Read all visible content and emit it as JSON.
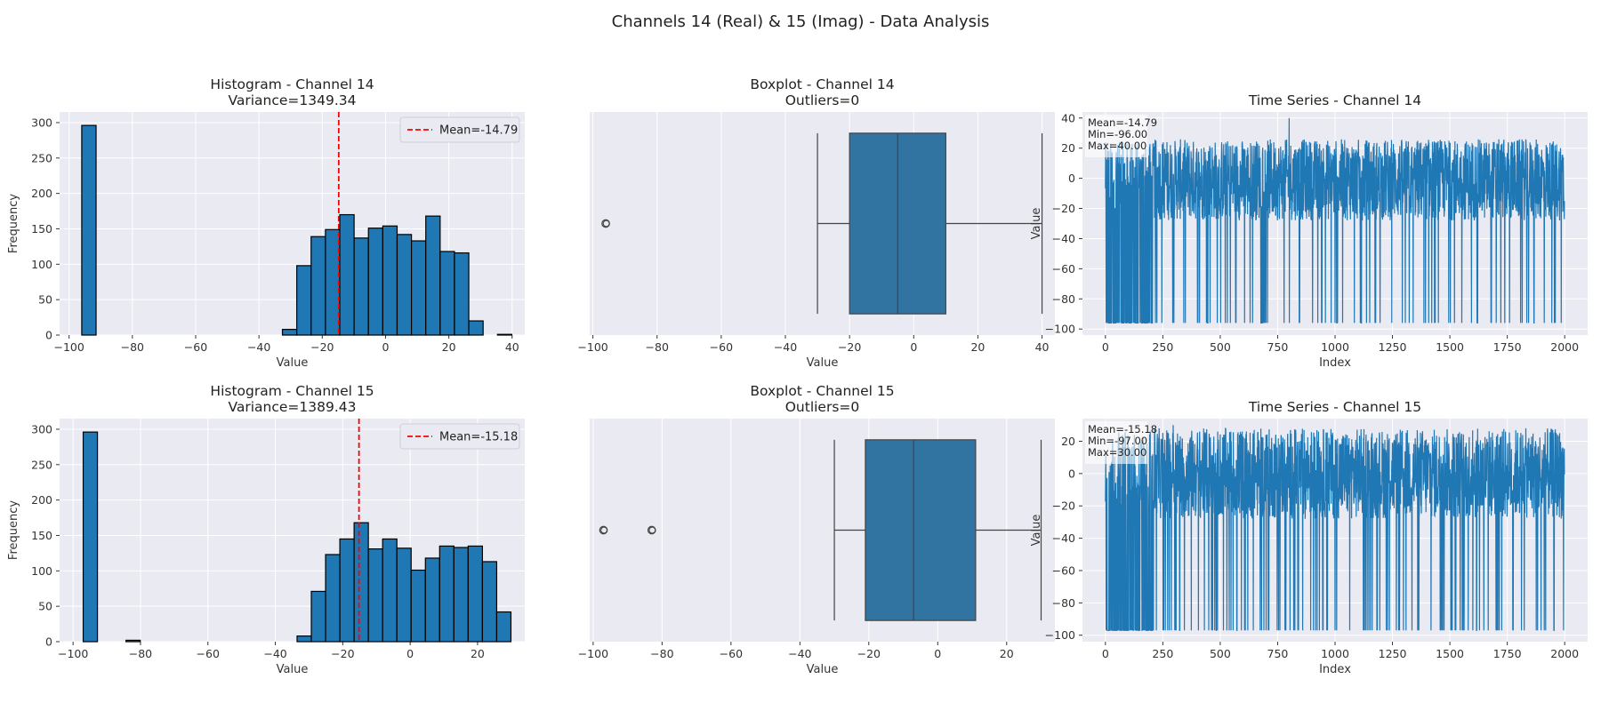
{
  "figure": {
    "suptitle": "Channels 14 (Real) & 15 (Imag) - Data Analysis"
  },
  "colors": {
    "bar": "#1f77b4",
    "box": "#3274a1",
    "bg": "#eaeaf2",
    "mean_line": "#ff0000"
  },
  "chart_data": [
    {
      "type": "bar",
      "title": "Histogram - Channel 14",
      "subtitle": "Variance=1349.34",
      "xlabel": "Value",
      "ylabel": "Frequency",
      "xlim": [
        -103,
        44
      ],
      "ylim": [
        0,
        315
      ],
      "xticks": [
        -100,
        -80,
        -60,
        -40,
        -20,
        0,
        20,
        40
      ],
      "yticks": [
        0,
        50,
        100,
        150,
        200,
        250,
        300
      ],
      "bins_start": -96,
      "bin_width": 4.53,
      "values": [
        296,
        0,
        0,
        0,
        0,
        0,
        0,
        0,
        0,
        0,
        0,
        0,
        0,
        0,
        8,
        98,
        139,
        149,
        170,
        137,
        151,
        154,
        142,
        133,
        168,
        118,
        116,
        20,
        0,
        1
      ],
      "mean": -14.79,
      "legend": "Mean=-14.79",
      "legend_position": "top-right",
      "grid": true
    },
    {
      "type": "boxplot",
      "title": "Boxplot - Channel 14",
      "subtitle": "Outliers=0",
      "xlabel": "Value",
      "xlim": [
        -101,
        44
      ],
      "xticks": [
        -100,
        -80,
        -60,
        -40,
        -20,
        0,
        20,
        40
      ],
      "whisker_low": -30,
      "q1": -20,
      "median": -5,
      "q3": 10,
      "whisker_high": 40,
      "fliers": [
        -96
      ],
      "grid": true
    },
    {
      "type": "line",
      "title": "Time Series - Channel 14",
      "xlabel": "Index",
      "ylabel": "Value",
      "xlim": [
        -100,
        2100
      ],
      "ylim": [
        -104,
        44
      ],
      "xticks": [
        0,
        250,
        500,
        750,
        1000,
        1250,
        1500,
        1750,
        2000
      ],
      "yticks": [
        -100,
        -80,
        -60,
        -40,
        -20,
        0,
        20,
        40
      ],
      "n_points": 2000,
      "mean": -14.79,
      "min": -96,
      "max": 40,
      "stats_text": [
        "Mean=-14.79",
        "Min=-96.00",
        "Max=40.00"
      ],
      "grid": true
    },
    {
      "type": "bar",
      "title": "Histogram - Channel 15",
      "subtitle": "Variance=1389.43",
      "xlabel": "Value",
      "ylabel": "Frequency",
      "xlim": [
        -104,
        34
      ],
      "ylim": [
        0,
        315
      ],
      "xticks": [
        -100,
        -80,
        -60,
        -40,
        -20,
        0,
        20
      ],
      "yticks": [
        0,
        50,
        100,
        150,
        200,
        250,
        300
      ],
      "bins_start": -97,
      "bin_width": 4.23,
      "values": [
        296,
        0,
        0,
        2,
        0,
        0,
        0,
        0,
        0,
        0,
        0,
        0,
        0,
        0,
        0,
        8,
        71,
        123,
        145,
        168,
        131,
        145,
        132,
        101,
        118,
        135,
        133,
        135,
        113,
        42
      ],
      "mean": -15.18,
      "legend": "Mean=-15.18",
      "legend_position": "top-right",
      "grid": true
    },
    {
      "type": "boxplot",
      "title": "Boxplot - Channel 15",
      "subtitle": "Outliers=0",
      "xlabel": "Value",
      "xlim": [
        -101,
        34
      ],
      "xticks": [
        -100,
        -80,
        -60,
        -40,
        -20,
        0,
        20
      ],
      "whisker_low": -30,
      "q1": -21,
      "median": -7,
      "q3": 11,
      "whisker_high": 30,
      "fliers": [
        -97,
        -83
      ],
      "grid": true
    },
    {
      "type": "line",
      "title": "Time Series - Channel 15",
      "xlabel": "Index",
      "ylabel": "Value",
      "xlim": [
        -100,
        2100
      ],
      "ylim": [
        -104,
        34
      ],
      "xticks": [
        0,
        250,
        500,
        750,
        1000,
        1250,
        1500,
        1750,
        2000
      ],
      "yticks": [
        -100,
        -80,
        -60,
        -40,
        -20,
        0,
        20
      ],
      "n_points": 2000,
      "mean": -15.18,
      "min": -97,
      "max": 30,
      "stats_text": [
        "Mean=-15.18",
        "Min=-97.00",
        "Max=30.00"
      ],
      "grid": true
    }
  ]
}
